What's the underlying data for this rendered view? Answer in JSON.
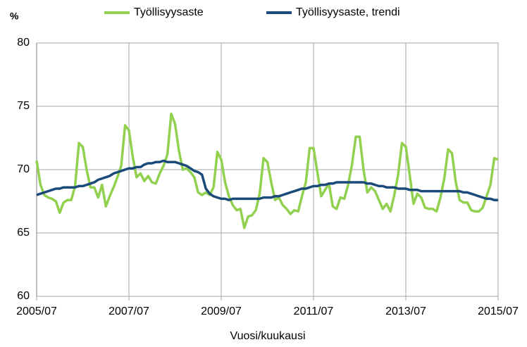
{
  "chart_data": {
    "type": "line",
    "unit_label": "%",
    "x_label": "Vuosi/kuukausi",
    "categories": [
      "2005/07",
      null,
      null,
      null,
      null,
      null,
      null,
      null,
      null,
      null,
      null,
      null,
      null,
      null,
      null,
      null,
      null,
      null,
      null,
      null,
      null,
      null,
      null,
      null,
      "2007/07",
      null,
      null,
      null,
      null,
      null,
      null,
      null,
      null,
      null,
      null,
      null,
      null,
      null,
      null,
      null,
      null,
      null,
      null,
      null,
      null,
      null,
      null,
      null,
      "2009/07",
      null,
      null,
      null,
      null,
      null,
      null,
      null,
      null,
      null,
      null,
      null,
      null,
      null,
      null,
      null,
      null,
      null,
      null,
      null,
      null,
      null,
      null,
      null,
      "2011/07",
      null,
      null,
      null,
      null,
      null,
      null,
      null,
      null,
      null,
      null,
      null,
      null,
      null,
      null,
      null,
      null,
      null,
      null,
      null,
      null,
      null,
      null,
      null,
      "2013/07",
      null,
      null,
      null,
      null,
      null,
      null,
      null,
      null,
      null,
      null,
      null,
      null,
      null,
      null,
      null,
      null,
      null,
      null,
      null,
      null,
      null,
      null,
      null,
      "2015/07"
    ],
    "series": [
      {
        "name": "Työllisyysaste",
        "color": "#92d050",
        "values": [
          70.7,
          68.8,
          68.0,
          67.8,
          67.7,
          67.5,
          66.6,
          67.4,
          67.6,
          67.6,
          68.7,
          72.1,
          71.8,
          70.0,
          68.6,
          68.6,
          67.8,
          68.8,
          67.1,
          67.9,
          68.6,
          69.4,
          70.3,
          73.5,
          73.1,
          71.0,
          69.4,
          69.7,
          69.1,
          69.5,
          69.0,
          68.9,
          69.7,
          70.3,
          71.2,
          74.4,
          73.6,
          71.5,
          70.0,
          70.1,
          69.8,
          69.4,
          68.2,
          68.0,
          68.2,
          68.0,
          68.6,
          71.4,
          70.8,
          69.0,
          67.9,
          67.2,
          66.8,
          66.9,
          65.4,
          66.3,
          66.4,
          66.8,
          68.1,
          70.9,
          70.6,
          69.0,
          67.6,
          67.8,
          67.2,
          66.9,
          66.5,
          66.8,
          66.7,
          67.9,
          69.0,
          71.7,
          71.7,
          69.8,
          67.9,
          68.4,
          68.9,
          67.1,
          66.9,
          67.8,
          67.7,
          68.8,
          70.4,
          72.6,
          72.6,
          70.0,
          68.2,
          68.6,
          68.3,
          67.6,
          66.9,
          67.3,
          66.7,
          68.0,
          69.6,
          72.1,
          71.8,
          69.6,
          67.3,
          68.1,
          67.8,
          67.0,
          66.9,
          66.9,
          66.7,
          67.8,
          69.3,
          71.6,
          71.3,
          69.0,
          67.6,
          67.4,
          67.4,
          66.8,
          66.7,
          66.7,
          67.0,
          67.9,
          68.8,
          70.9,
          70.8
        ]
      },
      {
        "name": "Työllisyysaste, trendi",
        "color": "#1a4a7a",
        "values": [
          68.0,
          68.1,
          68.2,
          68.3,
          68.4,
          68.5,
          68.5,
          68.6,
          68.6,
          68.6,
          68.6,
          68.7,
          68.7,
          68.8,
          68.9,
          69.0,
          69.2,
          69.3,
          69.4,
          69.5,
          69.7,
          69.8,
          69.9,
          70.0,
          70.1,
          70.1,
          70.2,
          70.2,
          70.4,
          70.5,
          70.5,
          70.6,
          70.6,
          70.7,
          70.6,
          70.6,
          70.6,
          70.5,
          70.4,
          70.3,
          70.1,
          69.9,
          69.8,
          69.6,
          68.5,
          68.1,
          67.9,
          67.8,
          67.7,
          67.7,
          67.6,
          67.7,
          67.7,
          67.7,
          67.7,
          67.7,
          67.7,
          67.7,
          67.7,
          67.8,
          67.8,
          67.8,
          67.9,
          67.9,
          68.0,
          68.1,
          68.2,
          68.3,
          68.4,
          68.5,
          68.5,
          68.6,
          68.7,
          68.7,
          68.8,
          68.8,
          68.9,
          68.9,
          69.0,
          69.0,
          69.0,
          69.0,
          69.0,
          69.0,
          69.0,
          69.0,
          68.9,
          68.9,
          68.8,
          68.7,
          68.7,
          68.6,
          68.6,
          68.6,
          68.5,
          68.5,
          68.5,
          68.4,
          68.4,
          68.4,
          68.3,
          68.3,
          68.3,
          68.3,
          68.3,
          68.3,
          68.3,
          68.3,
          68.3,
          68.3,
          68.3,
          68.2,
          68.2,
          68.1,
          68.0,
          67.9,
          67.8,
          67.7,
          67.7,
          67.6,
          67.6
        ]
      }
    ],
    "ylim": [
      60,
      80
    ],
    "yticks": [
      60,
      65,
      70,
      75,
      80
    ],
    "grid": true
  }
}
